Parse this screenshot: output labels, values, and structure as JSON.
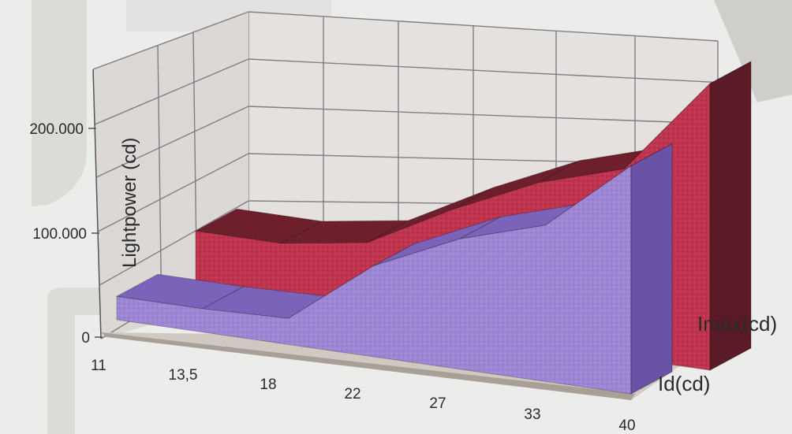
{
  "chart_data": {
    "type": "area",
    "style": "3d-ribbon",
    "x": [
      "11",
      "13,5",
      "18",
      "22",
      "27",
      "33",
      "40"
    ],
    "ylabel": "Lightpower (cd)",
    "y_ticks": [
      "0",
      "100.000",
      "200.000"
    ],
    "ylim": [
      0,
      260000
    ],
    "grid": true,
    "series": [
      {
        "name": "Imax(cd)",
        "values": [
          50000,
          50000,
          60000,
          95000,
          125000,
          145000,
          220000
        ],
        "color": "#c0344f"
      },
      {
        "name": "Id(cd)",
        "values": [
          18000,
          18000,
          20000,
          70000,
          100000,
          120000,
          175000
        ],
        "color": "#9d86d4"
      }
    ]
  }
}
